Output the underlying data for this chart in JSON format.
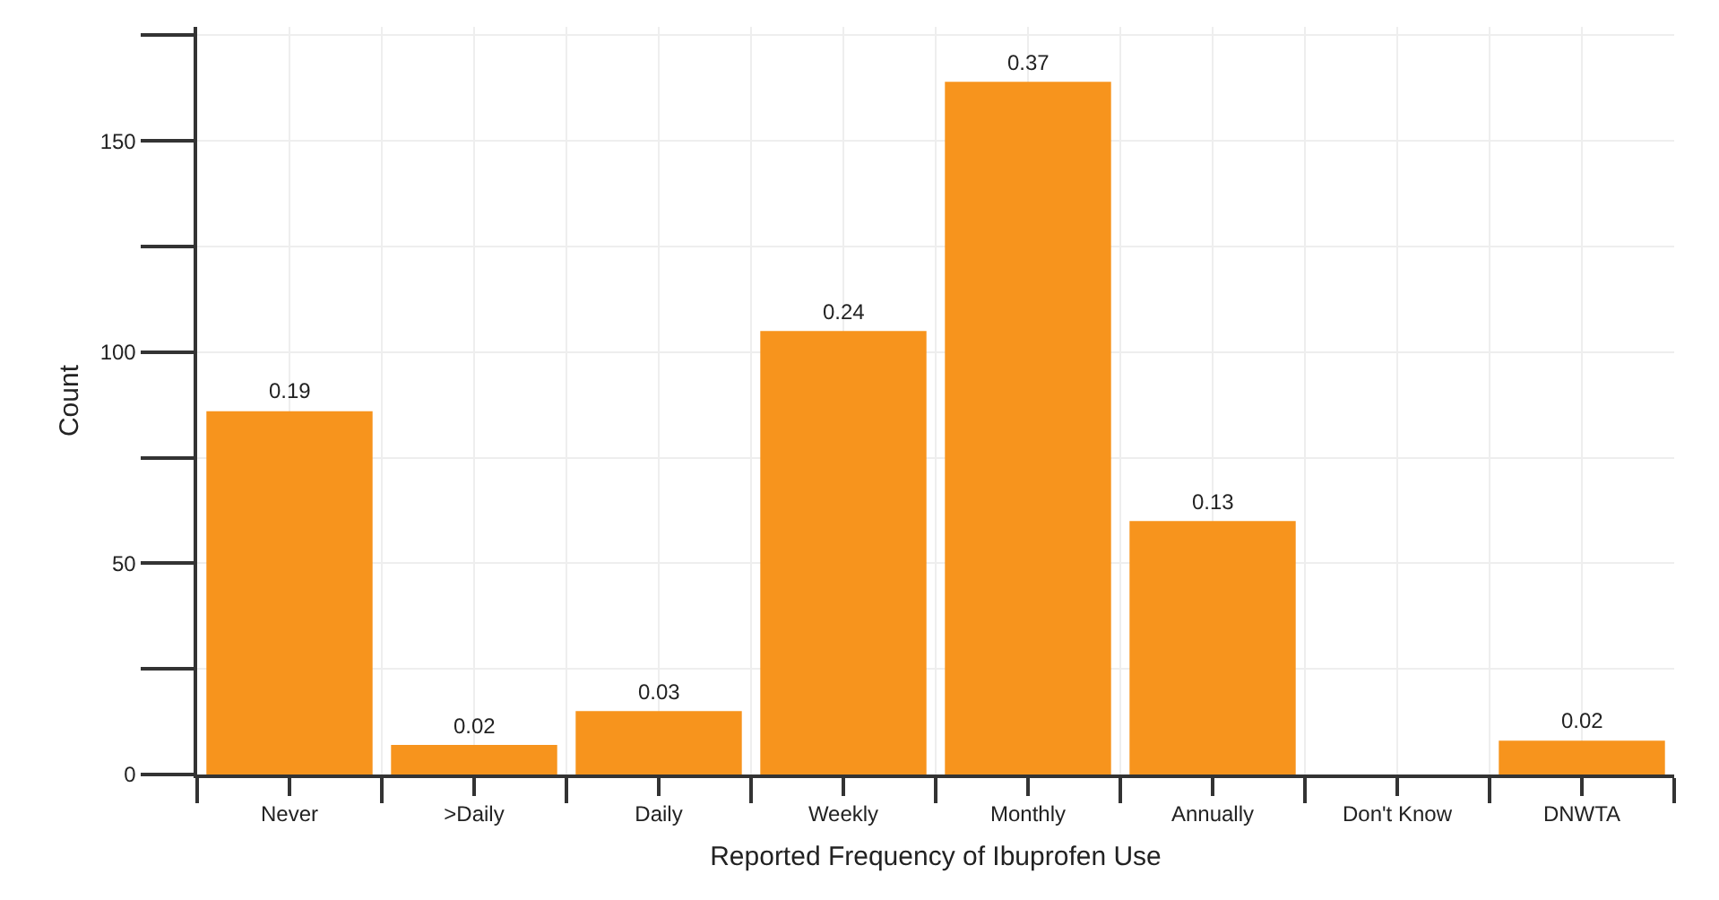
{
  "chart_data": {
    "type": "bar",
    "xlabel": "Reported Frequency of Ibuprofen Use",
    "ylabel": "Count",
    "categories": [
      "Never",
      ">Daily",
      "Daily",
      "Weekly",
      "Monthly",
      "Annually",
      "Don't Know",
      "DNWTA"
    ],
    "values": [
      86,
      7,
      15,
      105,
      164,
      60,
      0,
      8
    ],
    "annotations": [
      {
        "text": "0.19",
        "x": "Never",
        "y": 86
      },
      {
        "text": "0.02",
        "x": ">Daily",
        "y": 7
      },
      {
        "text": "0.03",
        "x": "Daily",
        "y": 15
      },
      {
        "text": "0.24",
        "x": "Weekly",
        "y": 105
      },
      {
        "text": "0.37",
        "x": "Monthly",
        "y": 164
      },
      {
        "text": "0.13",
        "x": "Annually",
        "y": 60
      },
      {
        "text": "0.02",
        "x": "DNWTA",
        "y": 8
      }
    ],
    "color": "#f7941d",
    "ylim": [
      0,
      177
    ],
    "yticks": [
      0,
      {
        "value": 25,
        "label": null
      },
      50,
      {
        "value": 75,
        "label": null
      },
      100,
      {
        "value": 125,
        "label": null
      },
      150,
      {
        "value": 175,
        "label": null
      }
    ],
    "grid": true
  }
}
